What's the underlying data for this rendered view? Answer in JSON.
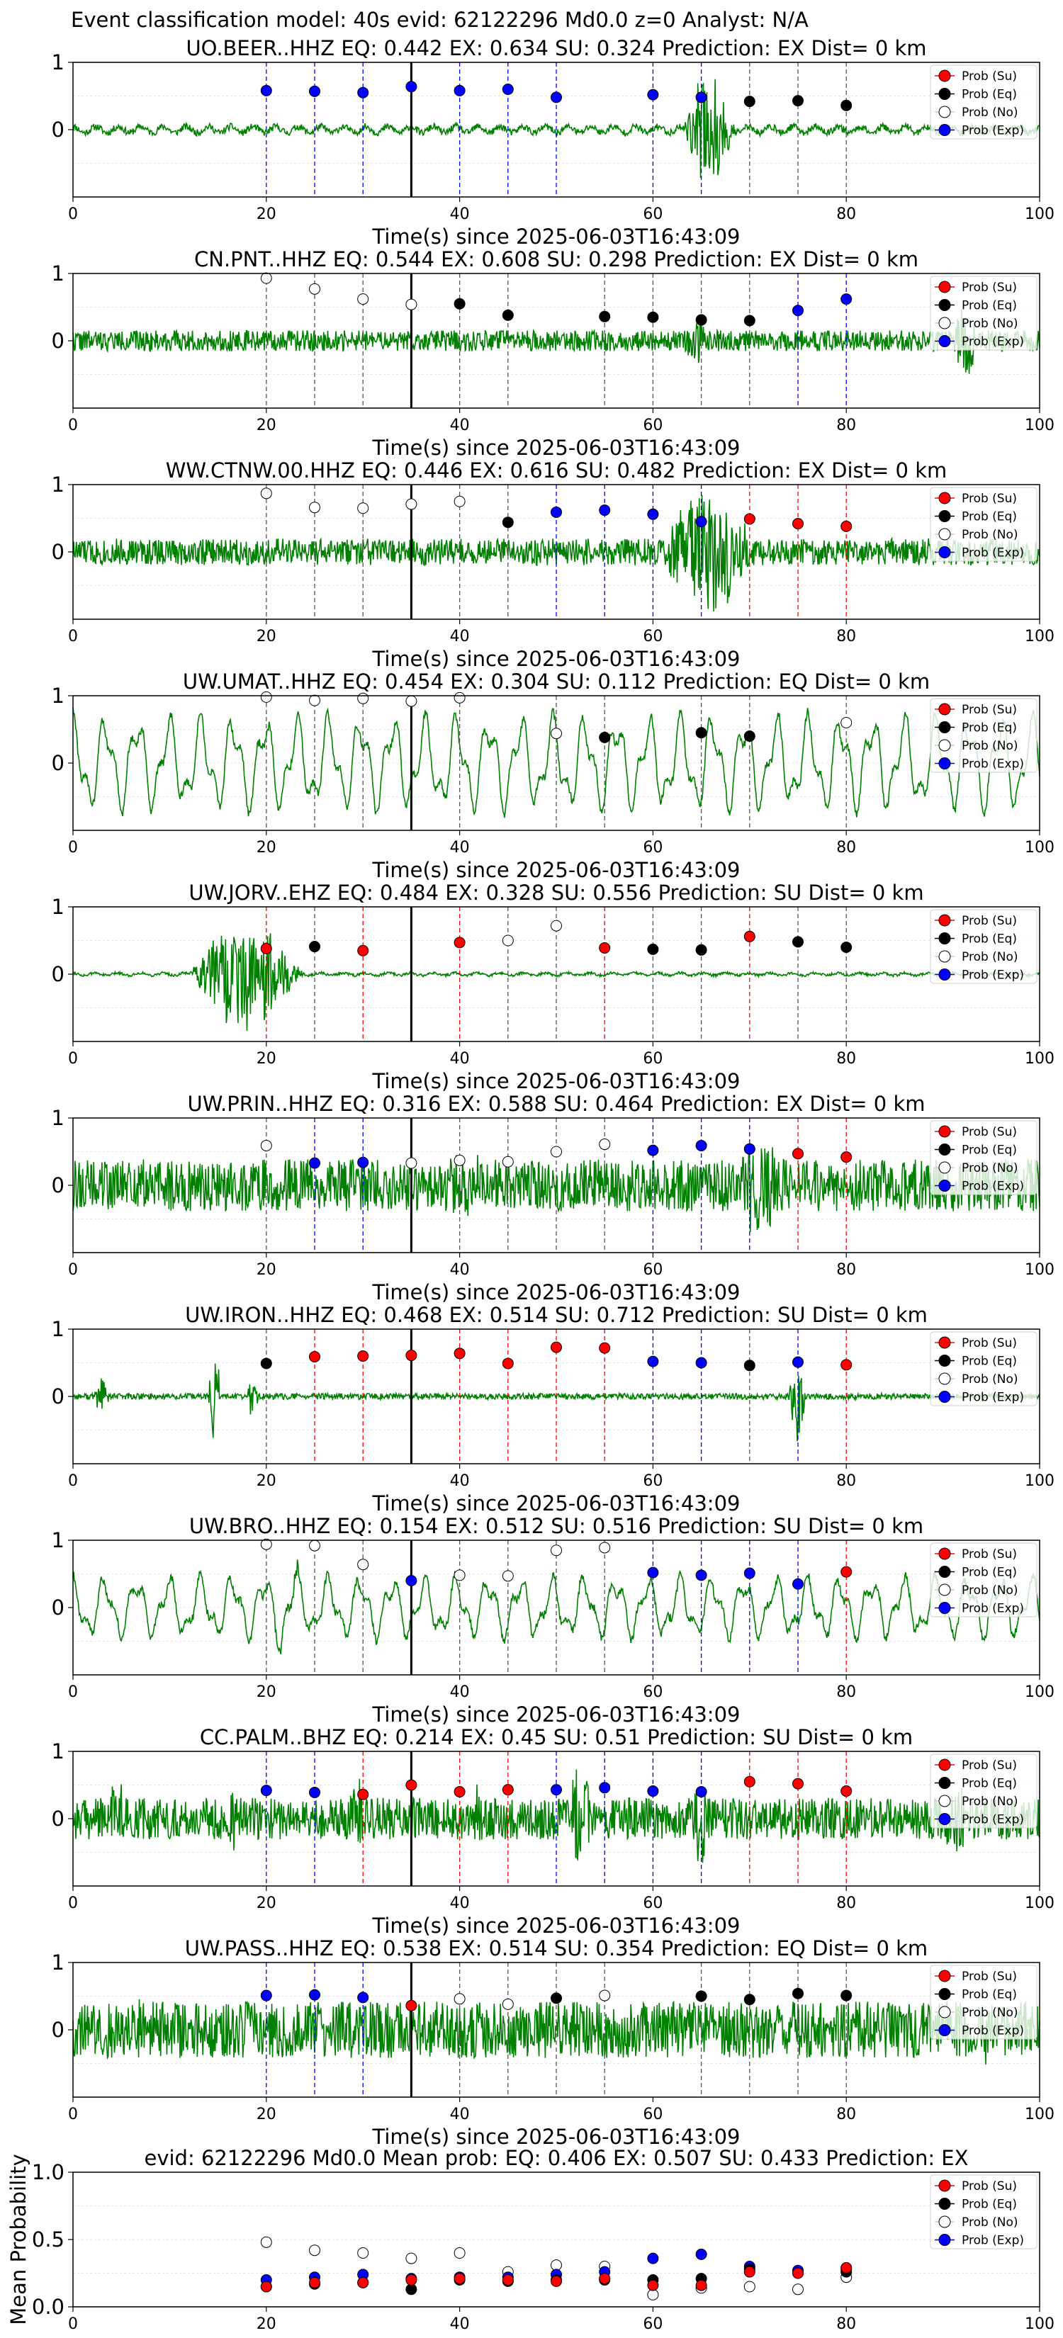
{
  "figure_title": "Event classification model: 40s evid: 62122296 Md0.0 z=0 Analyst: N/A",
  "legend_entries": [
    {
      "label": "Prob (Su)",
      "color": "#ff0000"
    },
    {
      "label": "Prob (Eq)",
      "color": "#000000"
    },
    {
      "label": "Prob (No)",
      "color": "#ffffff"
    },
    {
      "label": "Prob (Exp)",
      "color": "#0000ff"
    }
  ],
  "colors": {
    "waveform": "#008000",
    "eq": "#000000",
    "su": "#ff0000",
    "no": "#ffffff",
    "exp": "#0000ff"
  },
  "chart_data": [
    {
      "type": "line",
      "title": "UO.BEER..HHZ   EQ: 0.442  EX: 0.634  SU: 0.324   Prediction: EX    Dist= 0 km",
      "xlabel": "Time(s) since 2025-06-03T16:43:09",
      "ylabel": "",
      "xlim": [
        0,
        100
      ],
      "ylim": [
        -1,
        1
      ],
      "xticks": [
        0,
        20,
        40,
        60,
        80,
        100
      ],
      "yticks": [
        0,
        1
      ],
      "grid": true,
      "legend": "top-right",
      "pick_time": 35,
      "waveform": {
        "seed": 11,
        "pattern": "burst",
        "amp": 0.05,
        "bursts": [
          [
            63,
            72,
            0.9
          ]
        ]
      },
      "windows_x": [
        20,
        25,
        30,
        40,
        45,
        50,
        60,
        65,
        70,
        75,
        80
      ],
      "classes": [
        "Exp",
        "Exp",
        "Exp",
        "Exp",
        "Exp",
        "Exp",
        "Exp",
        "Exp",
        "Eq",
        "Eq",
        "Eq"
      ],
      "probs": [
        0.58,
        0.57,
        0.55,
        0.58,
        0.6,
        0.48,
        0.52,
        0.48,
        0.42,
        0.43,
        0.36
      ],
      "pick_point": {
        "x": 35,
        "class": "Exp",
        "prob": 0.64
      }
    },
    {
      "type": "line",
      "title": "CN.PNT..HHZ   EQ: 0.544  EX: 0.608  SU: 0.298   Prediction: EX    Dist= 0 km",
      "xlabel": "Time(s) since 2025-06-03T16:43:09",
      "ylabel": "",
      "xlim": [
        0,
        100
      ],
      "ylim": [
        -1,
        1
      ],
      "xticks": [
        0,
        20,
        40,
        60,
        80,
        100
      ],
      "yticks": [
        0,
        1
      ],
      "grid": true,
      "legend": "top-right",
      "pick_time": 35,
      "waveform": {
        "seed": 22,
        "pattern": "noise",
        "amp": 0.14,
        "bursts": [
          [
            63,
            68,
            0.35
          ],
          [
            91,
            95,
            0.75
          ]
        ]
      },
      "windows_x": [
        20,
        25,
        30,
        40,
        45,
        55,
        60,
        65,
        70,
        75,
        80
      ],
      "classes": [
        "No",
        "No",
        "No",
        "Eq",
        "Eq",
        "Eq",
        "Eq",
        "Eq",
        "Eq",
        "Exp",
        "Exp"
      ],
      "probs": [
        0.93,
        0.77,
        0.62,
        0.55,
        0.38,
        0.36,
        0.35,
        0.31,
        0.3,
        0.45,
        0.62
      ],
      "pick_point": {
        "x": 35,
        "class": "No",
        "prob": 0.54
      }
    },
    {
      "type": "line",
      "title": "WW.CTNW.00.HHZ   EQ: 0.446  EX: 0.616  SU: 0.482   Prediction: EX    Dist= 0 km",
      "xlabel": "Time(s) since 2025-06-03T16:43:09",
      "ylabel": "",
      "xlim": [
        0,
        100
      ],
      "ylim": [
        -1,
        1
      ],
      "xticks": [
        0,
        20,
        40,
        60,
        80,
        100
      ],
      "yticks": [
        0,
        1
      ],
      "grid": true,
      "legend": "top-right",
      "pick_time": 35,
      "waveform": {
        "seed": 33,
        "pattern": "noise",
        "amp": 0.18,
        "bursts": [
          [
            60,
            78,
            0.95
          ]
        ]
      },
      "windows_x": [
        20,
        25,
        30,
        40,
        45,
        50,
        55,
        60,
        65,
        70,
        75,
        80
      ],
      "classes": [
        "No",
        "No",
        "No",
        "No",
        "Eq",
        "Exp",
        "Exp",
        "Exp",
        "Exp",
        "Su",
        "Su",
        "Su"
      ],
      "probs": [
        0.87,
        0.66,
        0.65,
        0.75,
        0.44,
        0.59,
        0.62,
        0.56,
        0.45,
        0.49,
        0.42,
        0.38
      ],
      "pick_point": {
        "x": 35,
        "class": "No",
        "prob": 0.71
      }
    },
    {
      "type": "line",
      "title": "UW.UMAT..HHZ   EQ: 0.454  EX: 0.304  SU: 0.112   Prediction: EQ    Dist= 0 km",
      "xlabel": "Time(s) since 2025-06-03T16:43:09",
      "ylabel": "",
      "xlim": [
        0,
        100
      ],
      "ylim": [
        -1,
        1
      ],
      "xticks": [
        0,
        20,
        40,
        60,
        80,
        100
      ],
      "yticks": [
        0,
        1
      ],
      "grid": true,
      "legend": "top-right",
      "pick_time": 35,
      "waveform": {
        "seed": 44,
        "pattern": "swell",
        "amp": 0.7,
        "bursts": []
      },
      "windows_x": [
        20,
        25,
        30,
        40,
        50,
        55,
        65,
        70,
        80
      ],
      "classes": [
        "No",
        "No",
        "No",
        "No",
        "No",
        "Eq",
        "Eq",
        "Eq",
        "No"
      ],
      "probs": [
        0.98,
        0.93,
        0.96,
        0.97,
        0.44,
        0.38,
        0.45,
        0.4,
        0.6
      ],
      "pick_point": {
        "x": 35,
        "class": "No",
        "prob": 0.92
      }
    },
    {
      "type": "line",
      "title": "UW.JORV..EHZ   EQ: 0.484  EX: 0.328  SU: 0.556   Prediction: SU    Dist= 0 km",
      "xlabel": "Time(s) since 2025-06-03T16:43:09",
      "ylabel": "",
      "xlim": [
        0,
        100
      ],
      "ylim": [
        -1,
        1
      ],
      "xticks": [
        0,
        20,
        40,
        60,
        80,
        100
      ],
      "yticks": [
        0,
        1
      ],
      "grid": true,
      "legend": "top-right",
      "pick_time": 35,
      "waveform": {
        "seed": 55,
        "pattern": "burst",
        "amp": 0.02,
        "bursts": [
          [
            12,
            31,
            0.95
          ]
        ]
      },
      "windows_x": [
        20,
        25,
        30,
        40,
        45,
        50,
        55,
        60,
        65,
        70,
        75,
        80
      ],
      "classes": [
        "Su",
        "Eq",
        "Su",
        "Su",
        "No",
        "No",
        "Su",
        "Eq",
        "Eq",
        "Su",
        "Eq",
        "Eq"
      ],
      "probs": [
        0.38,
        0.41,
        0.35,
        0.47,
        0.5,
        0.72,
        0.39,
        0.37,
        0.36,
        0.56,
        0.48,
        0.4
      ],
      "pick_point": null
    },
    {
      "type": "line",
      "title": "UW.PRIN..HHZ   EQ: 0.316  EX: 0.588  SU: 0.464   Prediction: EX    Dist= 0 km",
      "xlabel": "Time(s) since 2025-06-03T16:43:09",
      "ylabel": "",
      "xlim": [
        0,
        100
      ],
      "ylim": [
        -1,
        1
      ],
      "xticks": [
        0,
        20,
        40,
        60,
        80,
        100
      ],
      "yticks": [
        0,
        1
      ],
      "grid": true,
      "legend": "top-right",
      "pick_time": 35,
      "waveform": {
        "seed": 66,
        "pattern": "noise",
        "amp": 0.35,
        "bursts": [
          [
            68,
            78,
            0.9
          ],
          [
            37,
            48,
            0.55
          ]
        ]
      },
      "windows_x": [
        20,
        25,
        30,
        40,
        45,
        50,
        55,
        60,
        65,
        70,
        75,
        80
      ],
      "classes": [
        "No",
        "Exp",
        "Exp",
        "No",
        "No",
        "No",
        "No",
        "Exp",
        "Exp",
        "Exp",
        "Su",
        "Su"
      ],
      "probs": [
        0.59,
        0.33,
        0.34,
        0.37,
        0.35,
        0.5,
        0.61,
        0.52,
        0.59,
        0.54,
        0.47,
        0.42
      ],
      "pick_point": {
        "x": 35,
        "class": "No",
        "prob": 0.33
      }
    },
    {
      "type": "line",
      "title": "UW.IRON..HHZ   EQ: 0.468  EX: 0.514  SU: 0.712   Prediction: SU    Dist= 0 km",
      "xlabel": "Time(s) since 2025-06-03T16:43:09",
      "ylabel": "",
      "xlim": [
        0,
        100
      ],
      "ylim": [
        -1,
        1
      ],
      "xticks": [
        0,
        20,
        40,
        60,
        80,
        100
      ],
      "yticks": [
        0,
        1
      ],
      "grid": true,
      "legend": "top-right",
      "pick_time": 35,
      "waveform": {
        "seed": 77,
        "pattern": "spikes",
        "amp": 0.04,
        "bursts": [
          [
            2,
            5,
            0.3
          ],
          [
            14,
            16,
            0.95
          ],
          [
            18,
            20,
            0.35
          ],
          [
            74,
            77,
            0.65
          ]
        ]
      },
      "windows_x": [
        20,
        25,
        30,
        40,
        45,
        50,
        55,
        60,
        65,
        70,
        75,
        80
      ],
      "classes": [
        "Eq",
        "Su",
        "Su",
        "Su",
        "Su",
        "Su",
        "Su",
        "Exp",
        "Exp",
        "Eq",
        "Exp",
        "Su"
      ],
      "probs": [
        0.49,
        0.59,
        0.6,
        0.64,
        0.49,
        0.73,
        0.72,
        0.52,
        0.5,
        0.46,
        0.51,
        0.47
      ],
      "pick_point": {
        "x": 35,
        "class": "Su",
        "prob": 0.61
      }
    },
    {
      "type": "line",
      "title": "UW.BRO..HHZ   EQ: 0.154  EX: 0.512  SU: 0.516   Prediction: SU    Dist= 0 km",
      "xlabel": "Time(s) since 2025-06-03T16:43:09",
      "ylabel": "",
      "xlim": [
        0,
        100
      ],
      "ylim": [
        -1,
        1
      ],
      "xticks": [
        0,
        20,
        40,
        60,
        80,
        100
      ],
      "yticks": [
        0,
        1
      ],
      "grid": true,
      "legend": "top-right",
      "pick_time": 35,
      "waveform": {
        "seed": 88,
        "pattern": "swell",
        "amp": 0.45,
        "bursts": [
          [
            20,
            27,
            0.95
          ]
        ]
      },
      "windows_x": [
        20,
        25,
        30,
        40,
        45,
        50,
        55,
        60,
        65,
        70,
        75,
        80
      ],
      "classes": [
        "No",
        "No",
        "No",
        "No",
        "No",
        "No",
        "No",
        "Exp",
        "Exp",
        "Exp",
        "Exp",
        "Su"
      ],
      "probs": [
        0.94,
        0.92,
        0.64,
        0.48,
        0.47,
        0.85,
        0.89,
        0.52,
        0.48,
        0.51,
        0.35,
        0.53
      ],
      "pick_point": {
        "x": 35,
        "class": "Exp",
        "prob": 0.4
      }
    },
    {
      "type": "line",
      "title": "CC.PALM..BHZ   EQ: 0.214  EX: 0.45  SU: 0.51   Prediction: SU    Dist= 0 km",
      "xlabel": "Time(s) since 2025-06-03T16:43:09",
      "ylabel": "",
      "xlim": [
        0,
        100
      ],
      "ylim": [
        -1,
        1
      ],
      "xticks": [
        0,
        20,
        40,
        60,
        80,
        100
      ],
      "yticks": [
        0,
        1
      ],
      "grid": true,
      "legend": "top-right",
      "pick_time": 35,
      "waveform": {
        "seed": 99,
        "pattern": "noise",
        "amp": 0.28,
        "bursts": [
          [
            3,
            8,
            0.6
          ],
          [
            15,
            20,
            0.6
          ],
          [
            28,
            32,
            0.7
          ],
          [
            41,
            44,
            0.5
          ],
          [
            51,
            56,
            0.9
          ],
          [
            64,
            67,
            0.8
          ],
          [
            89,
            96,
            0.55
          ]
        ]
      },
      "windows_x": [
        20,
        25,
        30,
        40,
        45,
        50,
        55,
        60,
        65,
        70,
        75,
        80
      ],
      "classes": [
        "Exp",
        "Exp",
        "Su",
        "Su",
        "Su",
        "Exp",
        "Exp",
        "Exp",
        "Exp",
        "Su",
        "Su",
        "Su"
      ],
      "probs": [
        0.42,
        0.39,
        0.36,
        0.4,
        0.43,
        0.43,
        0.46,
        0.41,
        0.4,
        0.55,
        0.52,
        0.41
      ],
      "pick_point": {
        "x": 35,
        "class": "Su",
        "prob": 0.5
      }
    },
    {
      "type": "line",
      "title": "UW.PASS..HHZ   EQ: 0.538  EX: 0.514  SU: 0.354   Prediction: EQ    Dist= 0 km",
      "xlabel": "Time(s) since 2025-06-03T16:43:09",
      "ylabel": "",
      "xlim": [
        0,
        100
      ],
      "ylim": [
        -1,
        1
      ],
      "xticks": [
        0,
        20,
        40,
        60,
        80,
        100
      ],
      "yticks": [
        0,
        1
      ],
      "grid": true,
      "legend": "top-right",
      "pick_time": 35,
      "waveform": {
        "seed": 121,
        "pattern": "noise",
        "amp": 0.38,
        "bursts": [
          [
            5,
            12,
            0.55
          ],
          [
            92,
            99,
            0.5
          ]
        ]
      },
      "windows_x": [
        20,
        25,
        30,
        40,
        45,
        50,
        55,
        65,
        70,
        75,
        80
      ],
      "classes": [
        "Exp",
        "Exp",
        "Exp",
        "No",
        "No",
        "Eq",
        "No",
        "Eq",
        "Eq",
        "Eq",
        "Eq"
      ],
      "probs": [
        0.51,
        0.52,
        0.48,
        0.46,
        0.38,
        0.47,
        0.51,
        0.5,
        0.45,
        0.54,
        0.51
      ],
      "pick_point": {
        "x": 35,
        "class": "Su",
        "prob": 0.36
      }
    },
    {
      "type": "scatter",
      "title": "evid: 62122296  Md0.0   Mean prob:   EQ: 0.406  EX: 0.507  SU: 0.433   Prediction: EX",
      "xlabel": "",
      "ylabel": "Mean Probability",
      "xlim": [
        0,
        100
      ],
      "ylim": [
        0,
        1
      ],
      "xticks": [
        0,
        20,
        40,
        60,
        80,
        100
      ],
      "yticks": [
        0.0,
        0.5,
        1.0
      ],
      "grid": true,
      "legend": "top-right",
      "x": [
        20,
        25,
        30,
        35,
        40,
        45,
        50,
        55,
        60,
        65,
        70,
        75,
        80
      ],
      "series": [
        {
          "name": "Prob (No)",
          "class": "No",
          "values": [
            0.48,
            0.42,
            0.4,
            0.36,
            0.4,
            0.26,
            0.31,
            0.3,
            0.09,
            0.14,
            0.15,
            0.13,
            0.22
          ]
        },
        {
          "name": "Prob (Exp)",
          "class": "Exp",
          "values": [
            0.2,
            0.22,
            0.24,
            0.21,
            0.22,
            0.22,
            0.24,
            0.26,
            0.36,
            0.39,
            0.3,
            0.27,
            0.28
          ]
        },
        {
          "name": "Prob (Eq)",
          "class": "Eq",
          "values": [
            0.15,
            0.17,
            0.18,
            0.13,
            0.2,
            0.19,
            0.2,
            0.2,
            0.2,
            0.21,
            0.28,
            0.25,
            0.26
          ]
        },
        {
          "name": "Prob (Su)",
          "class": "Su",
          "values": [
            0.15,
            0.18,
            0.18,
            0.2,
            0.21,
            0.2,
            0.19,
            0.21,
            0.16,
            0.16,
            0.26,
            0.25,
            0.29
          ]
        }
      ]
    }
  ]
}
